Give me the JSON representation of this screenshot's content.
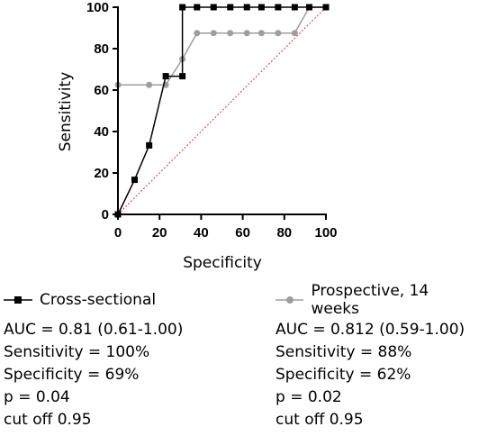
{
  "chart_data": {
    "type": "line",
    "xlabel": "Specificity",
    "ylabel": "Sensitivity",
    "xlim": [
      0,
      100
    ],
    "ylim": [
      0,
      100
    ],
    "x_ticks": [
      "0",
      "20",
      "40",
      "60",
      "80",
      "100"
    ],
    "y_ticks": [
      "0",
      "20",
      "40",
      "60",
      "80",
      "100"
    ],
    "grid": false,
    "reference_line": {
      "from": [
        0,
        0
      ],
      "to": [
        100,
        100
      ],
      "style": "dotted",
      "color": "#e8302a"
    },
    "series": [
      {
        "name": "Cross-sectional",
        "color": "#000000",
        "marker": "square",
        "x": [
          0,
          8,
          15,
          23,
          31,
          31,
          38,
          46,
          54,
          62,
          69,
          77,
          85,
          92,
          100
        ],
        "y": [
          0,
          16.7,
          33.3,
          66.7,
          66.7,
          100,
          100,
          100,
          100,
          100,
          100,
          100,
          100,
          100,
          100
        ]
      },
      {
        "name": "Prospective, 14 weeks",
        "color": "#9e9e9e",
        "marker": "circle",
        "x": [
          0,
          0,
          15,
          23,
          31,
          38,
          46,
          54,
          62,
          69,
          77,
          85,
          92,
          100
        ],
        "y": [
          0,
          62.5,
          62.5,
          62.5,
          75,
          87.5,
          87.5,
          87.5,
          87.5,
          87.5,
          87.5,
          87.5,
          100,
          100
        ]
      }
    ]
  },
  "stats": {
    "left": {
      "legend": "Cross-sectional",
      "auc": "AUC = 0.81 (0.61-1.00)",
      "sensitivity": "Sensitivity = 100%",
      "specificity": "Specificity = 69%",
      "p": "p = 0.04",
      "cutoff": "cut off  0.95"
    },
    "right": {
      "legend": "Prospective, 14 weeks",
      "auc": "AUC = 0.812 (0.59-1.00)",
      "sensitivity": "Sensitivity = 88%",
      "specificity": "Specificity = 62%",
      "p": "p = 0.02",
      "cutoff": "cut off  0.95"
    }
  }
}
